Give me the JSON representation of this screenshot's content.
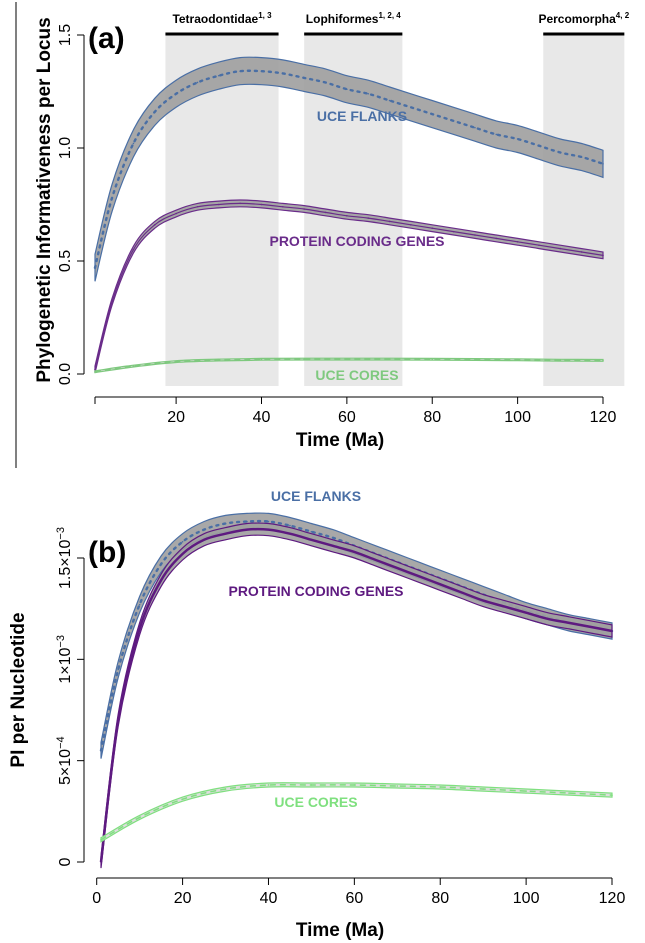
{
  "chart_data": [
    {
      "panel": "(a)",
      "type": "line",
      "xlabel": "Time (Ma)",
      "ylabel": "Phylogenetic Informativeness per Locus",
      "xlim": [
        0,
        125
      ],
      "ylim": [
        0,
        1.5
      ],
      "x_ticks": [
        "20",
        "40",
        "60",
        "80",
        "100",
        "120"
      ],
      "y_ticks": [
        "0.0",
        "0.5",
        "1.0",
        "1.5"
      ],
      "shaded_ranges": [
        {
          "label": "Tetraodontidae",
          "sup": "1, 3",
          "x": [
            17.5,
            44
          ]
        },
        {
          "label": "Lophiformes",
          "sup": "1, 2, 4",
          "x": [
            50,
            73
          ]
        },
        {
          "label": "Percomorpha",
          "sup": "4, 2",
          "x": [
            106,
            125
          ]
        }
      ],
      "series": [
        {
          "name": "UCE FLANKS",
          "color": "#4a6fa5",
          "x": [
            1,
            5,
            10,
            15,
            20,
            25,
            30,
            35,
            40,
            45,
            50,
            55,
            60,
            65,
            70,
            75,
            80,
            85,
            90,
            95,
            100,
            105,
            110,
            115,
            120
          ],
          "y": [
            0.47,
            0.78,
            1.02,
            1.16,
            1.24,
            1.29,
            1.32,
            1.34,
            1.34,
            1.33,
            1.31,
            1.29,
            1.26,
            1.24,
            1.21,
            1.18,
            1.15,
            1.12,
            1.09,
            1.06,
            1.04,
            1.01,
            0.98,
            0.96,
            0.93
          ],
          "band": 0.06
        },
        {
          "name": "PROTEIN CODING GENES",
          "color": "#6a2c8a",
          "x": [
            1,
            5,
            10,
            15,
            20,
            25,
            30,
            35,
            40,
            45,
            50,
            55,
            60,
            65,
            70,
            75,
            80,
            85,
            90,
            95,
            100,
            105,
            110,
            115,
            120
          ],
          "y": [
            0.02,
            0.32,
            0.55,
            0.66,
            0.71,
            0.74,
            0.75,
            0.755,
            0.75,
            0.74,
            0.73,
            0.715,
            0.7,
            0.69,
            0.675,
            0.66,
            0.645,
            0.63,
            0.615,
            0.6,
            0.585,
            0.57,
            0.555,
            0.54,
            0.525
          ],
          "band": 0.015
        },
        {
          "name": "UCE CORES",
          "color": "#7fc97f",
          "dashed": true,
          "x": [
            1,
            10,
            20,
            30,
            40,
            50,
            60,
            70,
            80,
            90,
            100,
            110,
            120
          ],
          "y": [
            0.01,
            0.035,
            0.055,
            0.062,
            0.065,
            0.066,
            0.066,
            0.066,
            0.065,
            0.064,
            0.063,
            0.061,
            0.06
          ],
          "band": 0.004
        }
      ]
    },
    {
      "panel": "(b)",
      "type": "line",
      "xlabel": "Time (Ma)",
      "ylabel": "PI per Nucleotide",
      "xlim": [
        0,
        124
      ],
      "ylim": [
        0,
        0.0017
      ],
      "x_ticks": [
        "0",
        "20",
        "40",
        "60",
        "80",
        "100",
        "120"
      ],
      "y_ticks": [
        {
          "value": 0,
          "mant": "0",
          "exp": ""
        },
        {
          "value": 0.0005,
          "mant": "5×10",
          "exp": "−4"
        },
        {
          "value": 0.001,
          "mant": "1×10",
          "exp": "−3"
        },
        {
          "value": 0.0015,
          "mant": "1.5×10",
          "exp": "−3"
        }
      ],
      "series": [
        {
          "name": "UCE FLANKS",
          "color": "#4a6fa5",
          "x": [
            1,
            5,
            10,
            15,
            20,
            25,
            30,
            35,
            40,
            45,
            50,
            55,
            60,
            65,
            70,
            75,
            80,
            85,
            90,
            95,
            100,
            105,
            110,
            115,
            120
          ],
          "y": [
            0.00055,
            0.00095,
            0.00127,
            0.00147,
            0.00158,
            0.00164,
            0.00167,
            0.00168,
            0.00168,
            0.00166,
            0.00163,
            0.0016,
            0.00156,
            0.00152,
            0.00148,
            0.00144,
            0.0014,
            0.00136,
            0.00132,
            0.00128,
            0.00124,
            0.00121,
            0.00118,
            0.00116,
            0.00114
          ],
          "band": 4e-05
        },
        {
          "name": "PROTEIN CODING GENES",
          "color": "#5e1a80",
          "x": [
            1,
            5,
            10,
            15,
            20,
            25,
            30,
            35,
            40,
            45,
            50,
            55,
            60,
            65,
            70,
            75,
            80,
            85,
            90,
            95,
            100,
            105,
            110,
            115,
            120
          ],
          "y": [
            0.0,
            0.0007,
            0.00115,
            0.00139,
            0.00152,
            0.00159,
            0.00162,
            0.00164,
            0.00164,
            0.00162,
            0.00159,
            0.00156,
            0.00153,
            0.00149,
            0.00145,
            0.00141,
            0.00137,
            0.00133,
            0.00129,
            0.00126,
            0.00123,
            0.0012,
            0.00118,
            0.00116,
            0.00114
          ],
          "band": 3e-05
        },
        {
          "name": "UCE CORES",
          "color": "#7fe07f",
          "dashed": true,
          "x": [
            1,
            10,
            20,
            30,
            40,
            50,
            60,
            70,
            80,
            90,
            100,
            110,
            120
          ],
          "y": [
            0.00011,
            0.00022,
            0.00031,
            0.00036,
            0.00038,
            0.00038,
            0.00038,
            0.000375,
            0.00037,
            0.00036,
            0.00035,
            0.00034,
            0.00033
          ],
          "band": 1e-05
        }
      ]
    }
  ]
}
